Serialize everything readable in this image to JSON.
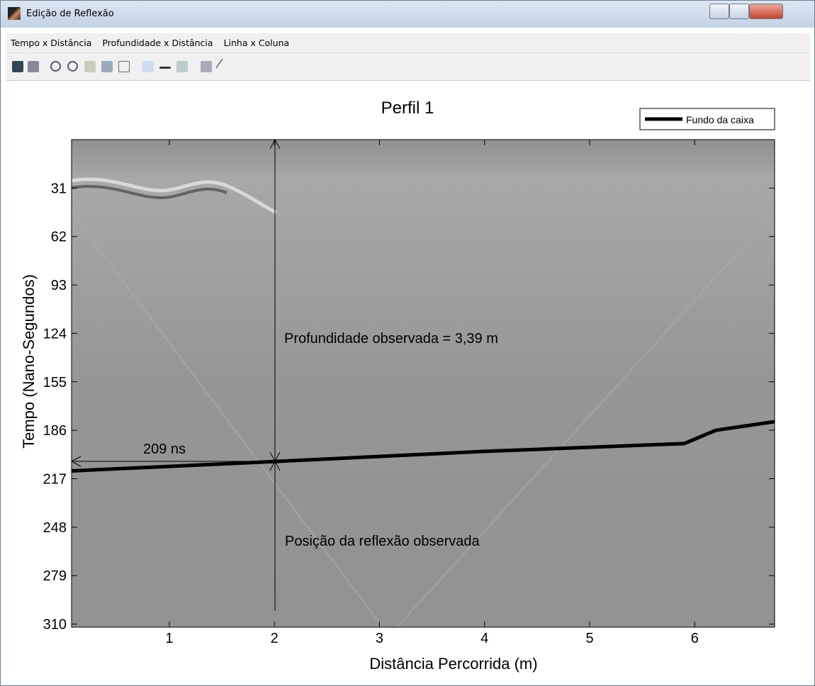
{
  "window": {
    "title": "Edição de Reflexão"
  },
  "menu": {
    "items": [
      "Tempo x Distância",
      "Profundidade x Distância",
      "Linha x Coluna"
    ]
  },
  "chart_data": {
    "type": "line",
    "title": "Perfil 1",
    "xlabel": "Distância  Percorrida (m)",
    "ylabel": "Tempo  (Nano-Segundos)",
    "xlim": [
      0.07,
      6.76
    ],
    "ylim": [
      0,
      312
    ],
    "y_inverted": true,
    "xticks": [
      1,
      2,
      3,
      4,
      5,
      6
    ],
    "yticks": [
      31,
      62,
      93,
      124,
      155,
      186,
      217,
      248,
      279,
      310
    ],
    "legend": "upper right",
    "series": [
      {
        "name": "Fundo da caixa",
        "color": "#000000",
        "x": [
          0.07,
          2,
          4,
          5.9,
          6.2,
          6.76
        ],
        "values": [
          212,
          206,
          199.5,
          194.5,
          186,
          180.5
        ]
      }
    ],
    "annotations": [
      "209 ns",
      "Profundidade observada = 3,39 m",
      "Posição da reflexão observada"
    ]
  }
}
